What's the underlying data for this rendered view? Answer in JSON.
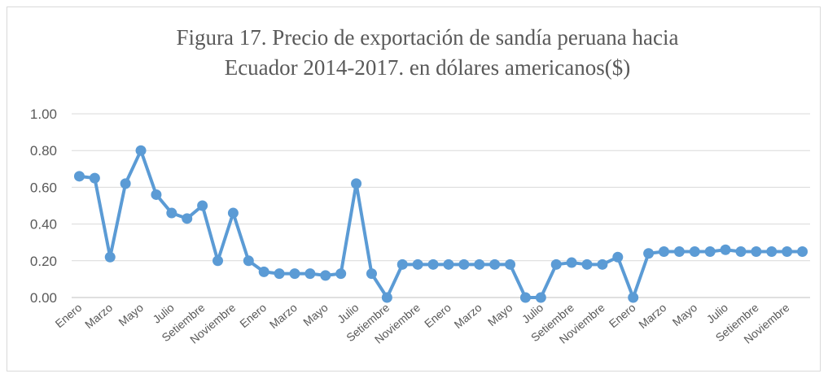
{
  "chart_data": {
    "type": "line",
    "title": [
      "Figura 17. Precio de exportación de sandía peruana hacia",
      "Ecuador  2014-2017. en dólares americanos($)"
    ],
    "categories": [
      "Enero",
      null,
      "Marzo",
      null,
      "Mayo",
      null,
      "Julio",
      null,
      "Setiembre",
      null,
      "Noviembre",
      null,
      "Enero",
      null,
      "Marzo",
      null,
      "Mayo",
      null,
      "Julio",
      null,
      "Setiembre",
      null,
      "Noviembre",
      null,
      "Enero",
      null,
      "Marzo",
      null,
      "Mayo",
      null,
      "Julio",
      null,
      "Setiembre",
      null,
      "Noviembre",
      null,
      "Enero",
      null,
      "Marzo",
      null,
      "Mayo",
      null,
      "Julio",
      null,
      "Setiembre",
      null,
      "Noviembre",
      null
    ],
    "values": [
      0.66,
      0.65,
      0.22,
      0.62,
      0.8,
      0.56,
      0.46,
      0.43,
      0.5,
      0.2,
      0.46,
      0.2,
      0.14,
      0.13,
      0.13,
      0.13,
      0.12,
      0.13,
      0.62,
      0.13,
      0.0,
      0.18,
      0.18,
      0.18,
      0.18,
      0.18,
      0.18,
      0.18,
      0.18,
      0.0,
      0.0,
      0.18,
      0.19,
      0.18,
      0.18,
      0.22,
      0.0,
      0.24,
      0.25,
      0.25,
      0.25,
      0.25,
      0.26,
      0.25,
      0.25,
      0.25,
      0.25,
      0.25
    ],
    "color": "#5b9bd5",
    "ylim": [
      0,
      1
    ],
    "yticks": [
      {
        "value": 0,
        "label": "0.00"
      },
      {
        "value": 0.2,
        "label": "0.20"
      },
      {
        "value": 0.4,
        "label": "0.40"
      },
      {
        "value": 0.6,
        "label": "0.60"
      },
      {
        "value": 0.8,
        "label": "0.80"
      },
      {
        "value": 1,
        "label": "1.00"
      }
    ],
    "grid": true
  }
}
